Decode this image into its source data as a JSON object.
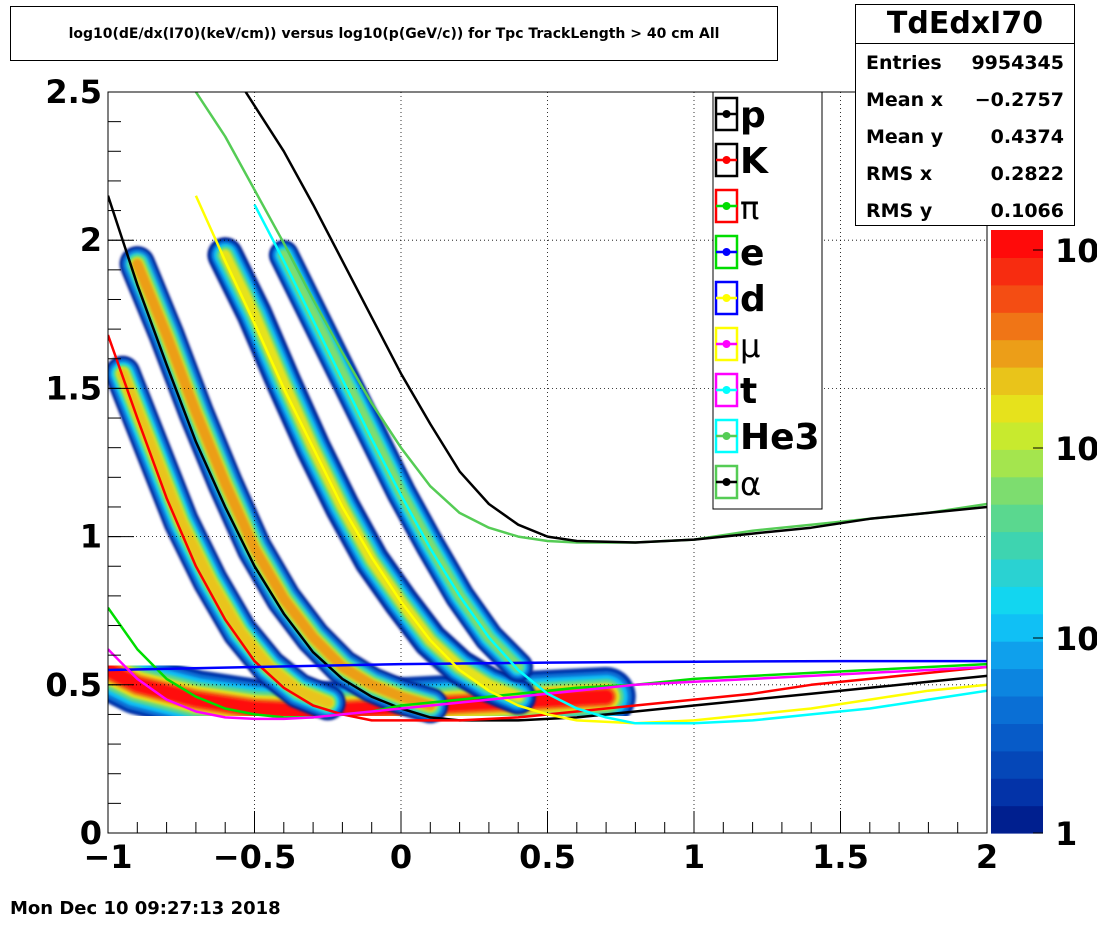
{
  "title": "log10(dE/dx(I70)(keV/cm)) versus log10(p(GeV/c)) for Tpc TrackLength > 40 cm All",
  "stats": {
    "name": "TdEdxI70",
    "rows": [
      {
        "label": "Entries",
        "value": "9954345"
      },
      {
        "label": "Mean x",
        "value": "−0.2757"
      },
      {
        "label": "Mean y",
        "value": "0.4374"
      },
      {
        "label": "RMS x",
        "value": "0.2822"
      },
      {
        "label": "RMS y",
        "value": "0.1066"
      }
    ]
  },
  "datestamp": "Mon Dec 10 09:27:13 2018",
  "colors": {
    "p": "#000000",
    "K": "#ff0000",
    "pi": "#00dd00",
    "e": "#0000ff",
    "d": "#ffff00",
    "mu": "#ff00ff",
    "t": "#00ffff",
    "He3": "#55cc55",
    "alpha": "#000000"
  },
  "palette": [
    "#001f8f",
    "#0333a8",
    "#0547b8",
    "#075bc8",
    "#0a6fd5",
    "#0c85e0",
    "#0fa0ec",
    "#10c0f5",
    "#12d6f0",
    "#2ad2d2",
    "#3ed4b0",
    "#5ad88f",
    "#7ddd6f",
    "#a4e54e",
    "#c8ea2e",
    "#e6e21c",
    "#e9c41a",
    "#ec9e18",
    "#f07516",
    "#f44d13",
    "#f72c10",
    "#ff0a0a"
  ],
  "chart_data": {
    "type": "heatmap",
    "title": "log10(dE/dx(I70)(keV/cm)) versus log10(p(GeV/c)) for Tpc TrackLength > 40 cm All",
    "xlabel": "",
    "ylabel": "",
    "xlim": [
      -1,
      2
    ],
    "ylim": [
      0,
      2.5
    ],
    "x_ticks": [
      "−1",
      "−0.5",
      "0",
      "0.5",
      "1",
      "1.5",
      "2"
    ],
    "y_ticks": [
      "0",
      "0.5",
      "1",
      "1.5",
      "2",
      "2.5"
    ],
    "z_scale": "log",
    "z_ticks": [
      "1",
      "10",
      "10",
      "10"
    ],
    "grid": true,
    "legend_position": "top-right",
    "legend": [
      {
        "name": "p",
        "color": "#000000",
        "box": "#000000"
      },
      {
        "name": "K",
        "color": "#ff0000",
        "box": "#000000"
      },
      {
        "name": "π",
        "color": "#00dd00",
        "box": "#ff0000"
      },
      {
        "name": "e",
        "color": "#0000ff",
        "box": "#00dd00"
      },
      {
        "name": "d",
        "color": "#ffff00",
        "box": "#0000ff"
      },
      {
        "name": "μ",
        "color": "#ff00ff",
        "box": "#ffff00"
      },
      {
        "name": "t",
        "color": "#00ffff",
        "box": "#ff00ff"
      },
      {
        "name": "He3",
        "color": "#55cc55",
        "box": "#00ffff"
      },
      {
        "name": "α",
        "color": "#000000",
        "box": "#55cc55"
      }
    ],
    "curves": [
      {
        "name": "p",
        "color": "#000000",
        "points": [
          [
            -1,
            2.15
          ],
          [
            -0.9,
            1.85
          ],
          [
            -0.8,
            1.58
          ],
          [
            -0.7,
            1.32
          ],
          [
            -0.6,
            1.1
          ],
          [
            -0.5,
            0.9
          ],
          [
            -0.4,
            0.74
          ],
          [
            -0.3,
            0.61
          ],
          [
            -0.2,
            0.52
          ],
          [
            -0.1,
            0.46
          ],
          [
            0,
            0.42
          ],
          [
            0.1,
            0.39
          ],
          [
            0.2,
            0.38
          ],
          [
            0.4,
            0.38
          ],
          [
            0.6,
            0.39
          ],
          [
            0.8,
            0.41
          ],
          [
            1,
            0.43
          ],
          [
            1.2,
            0.45
          ],
          [
            1.4,
            0.47
          ],
          [
            1.6,
            0.49
          ],
          [
            1.8,
            0.51
          ],
          [
            2,
            0.53
          ]
        ]
      },
      {
        "name": "K",
        "color": "#ff0000",
        "points": [
          [
            -1,
            1.68
          ],
          [
            -0.9,
            1.4
          ],
          [
            -0.8,
            1.13
          ],
          [
            -0.7,
            0.9
          ],
          [
            -0.6,
            0.72
          ],
          [
            -0.5,
            0.58
          ],
          [
            -0.4,
            0.49
          ],
          [
            -0.3,
            0.43
          ],
          [
            -0.2,
            0.4
          ],
          [
            -0.1,
            0.38
          ],
          [
            0,
            0.38
          ],
          [
            0.2,
            0.38
          ],
          [
            0.4,
            0.39
          ],
          [
            0.6,
            0.41
          ],
          [
            0.8,
            0.43
          ],
          [
            1,
            0.45
          ],
          [
            1.2,
            0.47
          ],
          [
            1.4,
            0.5
          ],
          [
            1.6,
            0.52
          ],
          [
            1.8,
            0.54
          ],
          [
            2,
            0.56
          ]
        ]
      },
      {
        "name": "π",
        "color": "#00dd00",
        "points": [
          [
            -1,
            0.76
          ],
          [
            -0.9,
            0.62
          ],
          [
            -0.8,
            0.52
          ],
          [
            -0.7,
            0.46
          ],
          [
            -0.6,
            0.42
          ],
          [
            -0.5,
            0.4
          ],
          [
            -0.4,
            0.39
          ],
          [
            -0.3,
            0.39
          ],
          [
            -0.2,
            0.4
          ],
          [
            -0.1,
            0.41
          ],
          [
            0,
            0.43
          ],
          [
            0.2,
            0.45
          ],
          [
            0.4,
            0.47
          ],
          [
            0.6,
            0.49
          ],
          [
            0.8,
            0.5
          ],
          [
            1,
            0.52
          ],
          [
            1.2,
            0.53
          ],
          [
            1.4,
            0.54
          ],
          [
            1.6,
            0.55
          ],
          [
            1.8,
            0.56
          ],
          [
            2,
            0.57
          ]
        ]
      },
      {
        "name": "e",
        "color": "#0000ff",
        "points": [
          [
            -1,
            0.55
          ],
          [
            -0.5,
            0.56
          ],
          [
            0,
            0.57
          ],
          [
            0.5,
            0.575
          ],
          [
            1,
            0.578
          ],
          [
            1.5,
            0.58
          ],
          [
            2,
            0.58
          ]
        ]
      },
      {
        "name": "d",
        "color": "#ffff00",
        "points": [
          [
            -0.7,
            2.15
          ],
          [
            -0.6,
            1.93
          ],
          [
            -0.5,
            1.72
          ],
          [
            -0.4,
            1.5
          ],
          [
            -0.3,
            1.3
          ],
          [
            -0.2,
            1.1
          ],
          [
            -0.1,
            0.93
          ],
          [
            0,
            0.78
          ],
          [
            0.1,
            0.65
          ],
          [
            0.2,
            0.55
          ],
          [
            0.3,
            0.48
          ],
          [
            0.4,
            0.43
          ],
          [
            0.5,
            0.4
          ],
          [
            0.6,
            0.38
          ],
          [
            0.8,
            0.37
          ],
          [
            1,
            0.38
          ],
          [
            1.2,
            0.4
          ],
          [
            1.4,
            0.42
          ],
          [
            1.6,
            0.45
          ],
          [
            1.8,
            0.48
          ],
          [
            2,
            0.5
          ]
        ]
      },
      {
        "name": "μ",
        "color": "#ff00ff",
        "points": [
          [
            -1,
            0.62
          ],
          [
            -0.9,
            0.52
          ],
          [
            -0.8,
            0.45
          ],
          [
            -0.7,
            0.41
          ],
          [
            -0.6,
            0.39
          ],
          [
            -0.5,
            0.385
          ],
          [
            -0.4,
            0.385
          ],
          [
            -0.3,
            0.39
          ],
          [
            -0.2,
            0.4
          ],
          [
            -0.1,
            0.41
          ],
          [
            0,
            0.42
          ],
          [
            0.2,
            0.44
          ],
          [
            0.4,
            0.46
          ],
          [
            0.6,
            0.48
          ],
          [
            0.8,
            0.5
          ],
          [
            1,
            0.51
          ],
          [
            1.2,
            0.52
          ],
          [
            1.4,
            0.53
          ],
          [
            1.6,
            0.54
          ],
          [
            1.8,
            0.55
          ],
          [
            2,
            0.56
          ]
        ]
      },
      {
        "name": "t",
        "color": "#00ffff",
        "points": [
          [
            -0.5,
            2.12
          ],
          [
            -0.4,
            1.93
          ],
          [
            -0.3,
            1.73
          ],
          [
            -0.2,
            1.53
          ],
          [
            -0.1,
            1.33
          ],
          [
            0,
            1.14
          ],
          [
            0.1,
            0.96
          ],
          [
            0.2,
            0.8
          ],
          [
            0.3,
            0.66
          ],
          [
            0.4,
            0.55
          ],
          [
            0.5,
            0.47
          ],
          [
            0.6,
            0.42
          ],
          [
            0.7,
            0.39
          ],
          [
            0.8,
            0.37
          ],
          [
            1,
            0.37
          ],
          [
            1.2,
            0.38
          ],
          [
            1.4,
            0.4
          ],
          [
            1.6,
            0.42
          ],
          [
            1.8,
            0.45
          ],
          [
            2,
            0.48
          ]
        ]
      },
      {
        "name": "He3",
        "color": "#55cc55",
        "points": [
          [
            -0.7,
            2.5
          ],
          [
            -0.6,
            2.35
          ],
          [
            -0.5,
            2.17
          ],
          [
            -0.4,
            1.99
          ],
          [
            -0.3,
            1.8
          ],
          [
            -0.2,
            1.62
          ],
          [
            -0.1,
            1.45
          ],
          [
            0,
            1.3
          ],
          [
            0.1,
            1.17
          ],
          [
            0.2,
            1.08
          ],
          [
            0.3,
            1.03
          ],
          [
            0.4,
            1.0
          ],
          [
            0.5,
            0.985
          ],
          [
            0.6,
            0.98
          ],
          [
            0.8,
            0.98
          ],
          [
            1,
            0.99
          ],
          [
            1.2,
            1.02
          ],
          [
            1.4,
            1.04
          ],
          [
            1.6,
            1.06
          ],
          [
            1.8,
            1.08
          ],
          [
            2,
            1.11
          ]
        ]
      },
      {
        "name": "α",
        "color": "#000000",
        "points": [
          [
            -0.53,
            2.5
          ],
          [
            -0.4,
            2.3
          ],
          [
            -0.3,
            2.12
          ],
          [
            -0.2,
            1.93
          ],
          [
            -0.1,
            1.74
          ],
          [
            0,
            1.55
          ],
          [
            0.1,
            1.38
          ],
          [
            0.2,
            1.22
          ],
          [
            0.3,
            1.11
          ],
          [
            0.4,
            1.04
          ],
          [
            0.5,
            1.0
          ],
          [
            0.6,
            0.985
          ],
          [
            0.8,
            0.98
          ],
          [
            1,
            0.99
          ],
          [
            1.2,
            1.01
          ],
          [
            1.4,
            1.03
          ],
          [
            1.6,
            1.06
          ],
          [
            1.8,
            1.08
          ],
          [
            2,
            1.1
          ]
        ]
      }
    ],
    "bands": [
      {
        "name": "pion/electron band",
        "points": [
          [
            -1,
            0.55
          ],
          [
            -0.9,
            0.5
          ],
          [
            -0.7,
            0.45
          ],
          [
            -0.5,
            0.42
          ],
          [
            -0.3,
            0.41
          ],
          [
            -0.1,
            0.42
          ],
          [
            0.1,
            0.43
          ],
          [
            0.3,
            0.44
          ],
          [
            0.5,
            0.45
          ],
          [
            0.7,
            0.46
          ]
        ],
        "width": 0.09,
        "intensity": 1.0
      },
      {
        "name": "kaon band",
        "points": [
          [
            -0.95,
            1.55
          ],
          [
            -0.85,
            1.3
          ],
          [
            -0.75,
            1.05
          ],
          [
            -0.65,
            0.85
          ],
          [
            -0.55,
            0.68
          ],
          [
            -0.45,
            0.56
          ],
          [
            -0.35,
            0.48
          ],
          [
            -0.25,
            0.44
          ]
        ],
        "width": 0.05,
        "intensity": 0.7
      },
      {
        "name": "proton band",
        "points": [
          [
            -0.9,
            1.92
          ],
          [
            -0.8,
            1.68
          ],
          [
            -0.7,
            1.42
          ],
          [
            -0.6,
            1.18
          ],
          [
            -0.5,
            0.96
          ],
          [
            -0.4,
            0.79
          ],
          [
            -0.3,
            0.66
          ],
          [
            -0.2,
            0.56
          ],
          [
            -0.1,
            0.5
          ],
          [
            0,
            0.46
          ],
          [
            0.1,
            0.43
          ]
        ],
        "width": 0.05,
        "intensity": 0.75
      },
      {
        "name": "deuteron band",
        "points": [
          [
            -0.6,
            1.95
          ],
          [
            -0.5,
            1.75
          ],
          [
            -0.4,
            1.52
          ],
          [
            -0.3,
            1.3
          ],
          [
            -0.2,
            1.1
          ],
          [
            -0.1,
            0.92
          ],
          [
            0,
            0.78
          ],
          [
            0.1,
            0.65
          ],
          [
            0.2,
            0.56
          ],
          [
            0.3,
            0.5
          ],
          [
            0.4,
            0.46
          ]
        ],
        "width": 0.05,
        "intensity": 0.55
      },
      {
        "name": "triton band",
        "points": [
          [
            -0.4,
            1.95
          ],
          [
            -0.3,
            1.75
          ],
          [
            -0.2,
            1.55
          ],
          [
            -0.1,
            1.35
          ],
          [
            0,
            1.15
          ],
          [
            0.1,
            0.97
          ],
          [
            0.2,
            0.8
          ],
          [
            0.3,
            0.66
          ],
          [
            0.4,
            0.56
          ]
        ],
        "width": 0.04,
        "intensity": 0.3
      }
    ]
  }
}
